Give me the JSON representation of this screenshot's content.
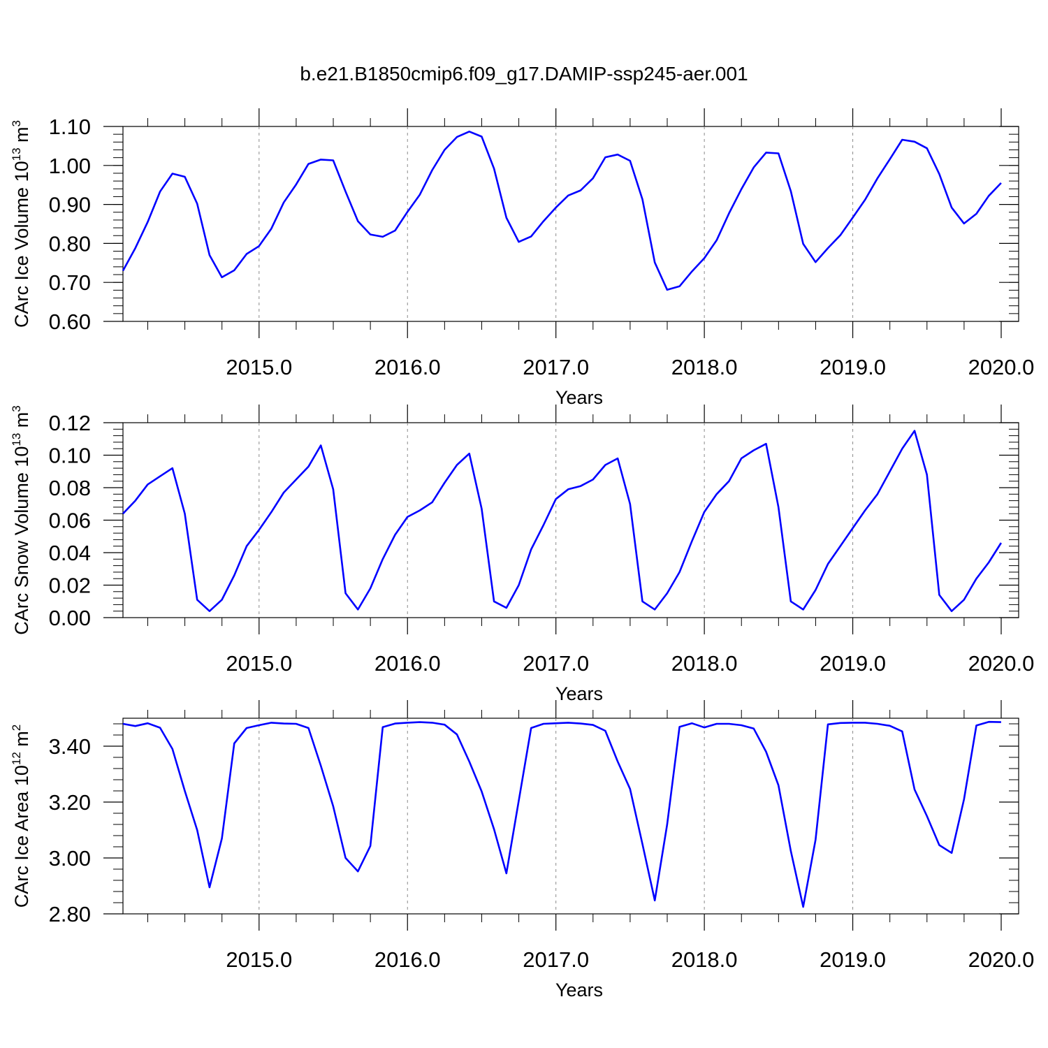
{
  "title": "b.e21.B1850cmip6.f09_g17.DAMIP-ssp245-aer.001",
  "colors": {
    "series": "#0000ff",
    "axis": "#000000",
    "grid": "#8a8a8a"
  },
  "chart_data": [
    {
      "type": "line",
      "ylabel": "CArc Ice Volume 10",
      "ylabel_exp": "13",
      "ylabel_unit": "m",
      "ylabel_unit_exp": "3",
      "xlabel": "Years",
      "xlim": [
        2014.083,
        2020.0
      ],
      "ylim": [
        0.6,
        1.1
      ],
      "yticks": [
        0.6,
        0.7,
        0.8,
        0.9,
        1.0,
        1.1
      ],
      "ytick_labels": [
        "0.60",
        "0.70",
        "0.80",
        "0.90",
        "1.00",
        "1.10"
      ],
      "xticks": [
        2015.0,
        2016.0,
        2017.0,
        2018.0,
        2019.0,
        2020.0
      ],
      "xtick_labels": [
        "2015.0",
        "2016.0",
        "2017.0",
        "2018.0",
        "2019.0",
        "2020.0"
      ],
      "grid": "vertical dashed at major x ticks",
      "x_start": 2014.083,
      "x_step": 0.08333,
      "values": [
        0.73,
        0.788,
        0.855,
        0.933,
        0.979,
        0.971,
        0.902,
        0.77,
        0.713,
        0.731,
        0.773,
        0.793,
        0.838,
        0.905,
        0.951,
        1.004,
        1.015,
        1.013,
        0.933,
        0.857,
        0.823,
        0.817,
        0.833,
        0.881,
        0.925,
        0.988,
        1.04,
        1.073,
        1.087,
        1.074,
        0.992,
        0.866,
        0.804,
        0.818,
        0.857,
        0.892,
        0.923,
        0.936,
        0.967,
        1.021,
        1.028,
        1.012,
        0.913,
        0.751,
        0.681,
        0.69,
        0.728,
        0.762,
        0.808,
        0.877,
        0.939,
        0.995,
        1.033,
        1.031,
        0.934,
        0.799,
        0.752,
        0.788,
        0.821,
        0.866,
        0.912,
        0.967,
        1.016,
        1.066,
        1.061,
        1.044,
        0.978,
        0.892,
        0.851,
        0.876,
        0.922,
        0.955
      ]
    },
    {
      "type": "line",
      "ylabel": "CArc Snow Volume 10",
      "ylabel_exp": "13",
      "ylabel_unit": "m",
      "ylabel_unit_exp": "3",
      "xlabel": "Years",
      "xlim": [
        2014.083,
        2020.0
      ],
      "ylim": [
        0.0,
        0.12
      ],
      "yticks": [
        0.0,
        0.02,
        0.04,
        0.06,
        0.08,
        0.1,
        0.12
      ],
      "ytick_labels": [
        "0.00",
        "0.02",
        "0.04",
        "0.06",
        "0.08",
        "0.10",
        "0.12"
      ],
      "xticks": [
        2015.0,
        2016.0,
        2017.0,
        2018.0,
        2019.0,
        2020.0
      ],
      "xtick_labels": [
        "2015.0",
        "2016.0",
        "2017.0",
        "2018.0",
        "2019.0",
        "2020.0"
      ],
      "grid": "vertical dashed at major x ticks",
      "x_start": 2014.083,
      "x_step": 0.08333,
      "values": [
        0.064,
        0.072,
        0.082,
        0.087,
        0.092,
        0.064,
        0.011,
        0.004,
        0.011,
        0.026,
        0.044,
        0.054,
        0.065,
        0.077,
        0.085,
        0.093,
        0.106,
        0.079,
        0.015,
        0.005,
        0.018,
        0.036,
        0.051,
        0.062,
        0.066,
        0.071,
        0.083,
        0.094,
        0.101,
        0.067,
        0.01,
        0.006,
        0.02,
        0.042,
        0.057,
        0.073,
        0.079,
        0.081,
        0.085,
        0.094,
        0.098,
        0.07,
        0.01,
        0.005,
        0.015,
        0.028,
        0.047,
        0.065,
        0.076,
        0.084,
        0.098,
        0.103,
        0.107,
        0.068,
        0.01,
        0.005,
        0.017,
        0.033,
        0.044,
        0.055,
        0.066,
        0.076,
        0.09,
        0.104,
        0.115,
        0.088,
        0.014,
        0.004,
        0.011,
        0.024,
        0.034,
        0.046
      ]
    },
    {
      "type": "line",
      "ylabel": "CArc Ice Area 10",
      "ylabel_exp": "12",
      "ylabel_unit": "m",
      "ylabel_unit_exp": "2",
      "xlabel": "Years",
      "xlim": [
        2014.083,
        2020.0
      ],
      "ylim": [
        2.8,
        3.5
      ],
      "yticks": [
        2.8,
        3.0,
        3.2,
        3.4
      ],
      "ytick_labels": [
        "2.80",
        "3.00",
        "3.20",
        "3.40"
      ],
      "xticks": [
        2015.0,
        2016.0,
        2017.0,
        2018.0,
        2019.0,
        2020.0
      ],
      "xtick_labels": [
        "2015.0",
        "2016.0",
        "2017.0",
        "2018.0",
        "2019.0",
        "2020.0"
      ],
      "grid": "vertical dashed at major x ticks",
      "x_start": 2014.083,
      "x_step": 0.08333,
      "values": [
        3.48,
        3.472,
        3.482,
        3.466,
        3.39,
        3.24,
        3.1,
        2.895,
        3.07,
        3.41,
        3.465,
        3.475,
        3.484,
        3.481,
        3.48,
        3.465,
        3.33,
        3.185,
        3.0,
        2.952,
        3.043,
        3.468,
        3.481,
        3.484,
        3.486,
        3.484,
        3.477,
        3.442,
        3.345,
        3.238,
        3.103,
        2.945,
        3.205,
        3.465,
        3.48,
        3.482,
        3.484,
        3.481,
        3.476,
        3.455,
        3.345,
        3.247,
        3.05,
        2.848,
        3.12,
        3.469,
        3.482,
        3.467,
        3.48,
        3.48,
        3.475,
        3.463,
        3.38,
        3.26,
        3.025,
        2.825,
        3.065,
        3.478,
        3.483,
        3.484,
        3.484,
        3.48,
        3.473,
        3.453,
        3.245,
        3.15,
        3.046,
        3.018,
        3.21,
        3.474,
        3.487,
        3.486
      ]
    }
  ]
}
